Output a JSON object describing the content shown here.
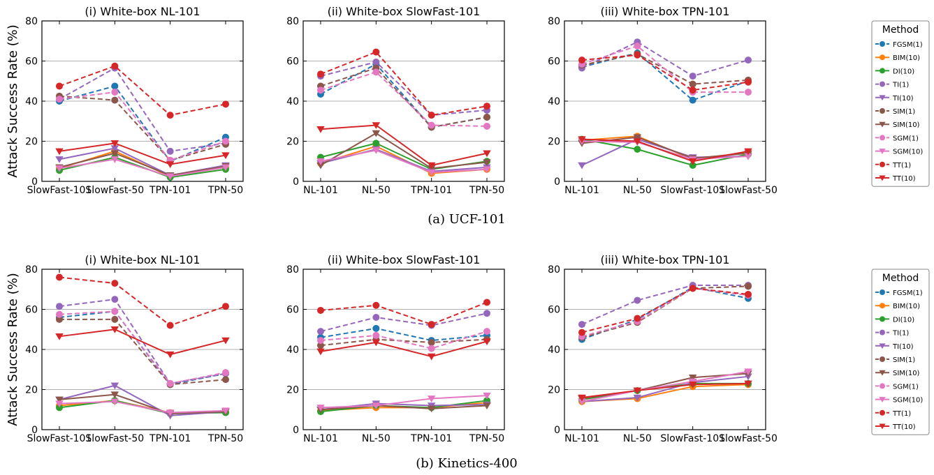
{
  "ylabel": "Attack Success Rate (%)",
  "legend": {
    "title": "Method",
    "entries": [
      {
        "name": "FGSM(1)",
        "color": "#1f77b4",
        "marker": "circle",
        "dash": true
      },
      {
        "name": "BIM(10)",
        "color": "#ff7f0e",
        "marker": "circle",
        "dash": false
      },
      {
        "name": "DI(10)",
        "color": "#2ca02c",
        "marker": "circle",
        "dash": false
      },
      {
        "name": "TI(1)",
        "color": "#9467bd",
        "marker": "circle",
        "dash": true
      },
      {
        "name": "TI(10)",
        "color": "#9467bd",
        "marker": "triangle",
        "dash": false
      },
      {
        "name": "SIM(1)",
        "color": "#8c564b",
        "marker": "circle",
        "dash": true
      },
      {
        "name": "SIM(10)",
        "color": "#8c564b",
        "marker": "triangle",
        "dash": false
      },
      {
        "name": "SGM(1)",
        "color": "#e377c2",
        "marker": "circle",
        "dash": true
      },
      {
        "name": "SGM(10)",
        "color": "#e377c2",
        "marker": "triangle",
        "dash": false
      },
      {
        "name": "TT(1)",
        "color": "#d62728",
        "marker": "circle",
        "dash": true
      },
      {
        "name": "TT(10)",
        "color": "#d62728",
        "marker": "triangle",
        "dash": false
      }
    ]
  },
  "captions": [
    "(a) UCF-101",
    "(b) Kinetics-400"
  ],
  "chart_data": [
    {
      "type": "line",
      "row": 0,
      "col": 0,
      "title": "(i) White-box NL-101",
      "categories": [
        "SlowFast-101",
        "SlowFast-50",
        "TPN-101",
        "TPN-50"
      ],
      "ylim": [
        0,
        80
      ],
      "yticks": [
        0,
        20,
        40,
        60,
        80
      ],
      "grid": true,
      "series": [
        {
          "name": "FGSM(1)",
          "values": [
            40,
            47.5,
            10,
            22
          ]
        },
        {
          "name": "BIM(10)",
          "values": [
            6.5,
            15,
            2.5,
            7
          ]
        },
        {
          "name": "DI(10)",
          "values": [
            5.5,
            12,
            2,
            6
          ]
        },
        {
          "name": "TI(1)",
          "values": [
            41,
            56.5,
            15,
            19
          ]
        },
        {
          "name": "TI(10)",
          "values": [
            11,
            16.5,
            3,
            8
          ]
        },
        {
          "name": "SIM(1)",
          "values": [
            42.5,
            40.5,
            10.5,
            18.5
          ]
        },
        {
          "name": "SIM(10)",
          "values": [
            7,
            14,
            3,
            7.5
          ]
        },
        {
          "name": "SGM(1)",
          "values": [
            41,
            44.5,
            10.5,
            20
          ]
        },
        {
          "name": "SGM(10)",
          "values": [
            6.5,
            11,
            2.5,
            7
          ]
        },
        {
          "name": "TT(1)",
          "values": [
            47.5,
            57.5,
            33,
            38.5
          ]
        },
        {
          "name": "TT(10)",
          "values": [
            15,
            19,
            8.5,
            13
          ]
        }
      ]
    },
    {
      "type": "line",
      "row": 0,
      "col": 1,
      "title": "(ii) White-box SlowFast-101",
      "categories": [
        "NL-101",
        "NL-50",
        "TPN-101",
        "TPN-50"
      ],
      "ylim": [
        0,
        80
      ],
      "yticks": [
        0,
        20,
        40,
        60,
        80
      ],
      "grid": true,
      "series": [
        {
          "name": "FGSM(1)",
          "values": [
            43.5,
            58.5,
            27,
            32
          ]
        },
        {
          "name": "BIM(10)",
          "values": [
            9,
            17.5,
            4,
            6
          ]
        },
        {
          "name": "DI(10)",
          "values": [
            12,
            19,
            6,
            10
          ]
        },
        {
          "name": "TI(1)",
          "values": [
            52.5,
            59.5,
            33,
            35.5
          ]
        },
        {
          "name": "TI(10)",
          "values": [
            9,
            16,
            5,
            7
          ]
        },
        {
          "name": "SIM(1)",
          "values": [
            47.5,
            56.5,
            27,
            32
          ]
        },
        {
          "name": "SIM(10)",
          "values": [
            8,
            24,
            6.5,
            9.5
          ]
        },
        {
          "name": "SGM(1)",
          "values": [
            45.5,
            54.5,
            28,
            27.5
          ]
        },
        {
          "name": "SGM(10)",
          "values": [
            10,
            15.5,
            4.5,
            6
          ]
        },
        {
          "name": "TT(1)",
          "values": [
            53.5,
            64.5,
            33,
            37.5
          ]
        },
        {
          "name": "TT(10)",
          "values": [
            26,
            28,
            8,
            14
          ]
        }
      ]
    },
    {
      "type": "line",
      "row": 0,
      "col": 2,
      "title": "(iii) White-box TPN-101",
      "categories": [
        "NL-101",
        "NL-50",
        "SlowFast-101",
        "SlowFast-50"
      ],
      "ylim": [
        0,
        80
      ],
      "yticks": [
        0,
        20,
        40,
        60,
        80
      ],
      "grid": true,
      "series": [
        {
          "name": "FGSM(1)",
          "values": [
            57,
            64,
            40.5,
            50
          ]
        },
        {
          "name": "BIM(10)",
          "values": [
            20.5,
            22.5,
            11,
            14.5
          ]
        },
        {
          "name": "DI(10)",
          "values": [
            21,
            16,
            8,
            13.5
          ]
        },
        {
          "name": "TI(1)",
          "values": [
            56.5,
            69.5,
            52.5,
            60.5
          ]
        },
        {
          "name": "TI(10)",
          "values": [
            8,
            21,
            12,
            12.5
          ]
        },
        {
          "name": "SIM(1)",
          "values": [
            58,
            63.5,
            48.5,
            50.5
          ]
        },
        {
          "name": "SIM(10)",
          "values": [
            19,
            22,
            11.5,
            14
          ]
        },
        {
          "name": "SGM(1)",
          "values": [
            58.5,
            67.5,
            44.5,
            44.5
          ]
        },
        {
          "name": "SGM(10)",
          "values": [
            20,
            19.5,
            11,
            12.5
          ]
        },
        {
          "name": "TT(1)",
          "values": [
            60.5,
            63,
            45.5,
            49.5
          ]
        },
        {
          "name": "TT(10)",
          "values": [
            21,
            20,
            10,
            15
          ]
        }
      ]
    },
    {
      "type": "line",
      "row": 1,
      "col": 0,
      "title": "(i) White-box NL-101",
      "categories": [
        "SlowFast-101",
        "SlowFast-50",
        "TPN-101",
        "TPN-50"
      ],
      "ylim": [
        0,
        80
      ],
      "yticks": [
        0,
        20,
        40,
        60,
        80
      ],
      "grid": true,
      "series": [
        {
          "name": "FGSM(1)",
          "values": [
            56,
            59,
            22.5,
            28
          ]
        },
        {
          "name": "BIM(10)",
          "values": [
            12,
            14.5,
            8.5,
            9
          ]
        },
        {
          "name": "DI(10)",
          "values": [
            11,
            14.5,
            8,
            8.5
          ]
        },
        {
          "name": "TI(1)",
          "values": [
            61.5,
            65,
            23,
            28
          ]
        },
        {
          "name": "TI(10)",
          "values": [
            15,
            22,
            7,
            9
          ]
        },
        {
          "name": "SIM(1)",
          "values": [
            55,
            55,
            22.5,
            25
          ]
        },
        {
          "name": "SIM(10)",
          "values": [
            15,
            17.5,
            8,
            9
          ]
        },
        {
          "name": "SGM(1)",
          "values": [
            57.5,
            59,
            23,
            28.5
          ]
        },
        {
          "name": "SGM(10)",
          "values": [
            13,
            14,
            8.5,
            9.5
          ]
        },
        {
          "name": "TT(1)",
          "values": [
            76,
            73,
            52,
            61.5
          ]
        },
        {
          "name": "TT(10)",
          "values": [
            46.5,
            50,
            37.5,
            44.5
          ]
        }
      ]
    },
    {
      "type": "line",
      "row": 1,
      "col": 1,
      "title": "(ii) White-box SlowFast-101",
      "categories": [
        "NL-101",
        "NL-50",
        "TPN-101",
        "TPN-50"
      ],
      "ylim": [
        0,
        80
      ],
      "yticks": [
        0,
        20,
        40,
        60,
        80
      ],
      "grid": true,
      "series": [
        {
          "name": "FGSM(1)",
          "values": [
            46,
            50.5,
            44.5,
            47
          ]
        },
        {
          "name": "BIM(10)",
          "values": [
            9.5,
            11,
            11,
            13.5
          ]
        },
        {
          "name": "DI(10)",
          "values": [
            9,
            12,
            11,
            14.5
          ]
        },
        {
          "name": "TI(1)",
          "values": [
            49,
            56,
            52,
            58
          ]
        },
        {
          "name": "TI(10)",
          "values": [
            10,
            13,
            12,
            12.5
          ]
        },
        {
          "name": "SIM(1)",
          "values": [
            42,
            45,
            43.5,
            45
          ]
        },
        {
          "name": "SIM(10)",
          "values": [
            10,
            12,
            10.5,
            12
          ]
        },
        {
          "name": "SGM(1)",
          "values": [
            44.5,
            47,
            40.5,
            49
          ]
        },
        {
          "name": "SGM(10)",
          "values": [
            11,
            12,
            15.5,
            17
          ]
        },
        {
          "name": "TT(1)",
          "values": [
            59.5,
            62,
            52.5,
            63.5
          ]
        },
        {
          "name": "TT(10)",
          "values": [
            39,
            43.5,
            36.5,
            44
          ]
        }
      ]
    },
    {
      "type": "line",
      "row": 1,
      "col": 2,
      "title": "(iii) White-box TPN-101",
      "categories": [
        "NL-101",
        "NL-50",
        "SlowFast-101",
        "SlowFast-50"
      ],
      "ylim": [
        0,
        80
      ],
      "yticks": [
        0,
        20,
        40,
        60,
        80
      ],
      "grid": true,
      "series": [
        {
          "name": "FGSM(1)",
          "values": [
            45,
            55,
            71,
            65.5
          ]
        },
        {
          "name": "BIM(10)",
          "values": [
            14,
            15.5,
            21.5,
            22.5
          ]
        },
        {
          "name": "DI(10)",
          "values": [
            15,
            19.5,
            23,
            23
          ]
        },
        {
          "name": "TI(1)",
          "values": [
            52.5,
            64.5,
            72,
            72
          ]
        },
        {
          "name": "TI(10)",
          "values": [
            14,
            16,
            23.5,
            26.5
          ]
        },
        {
          "name": "SIM(1)",
          "values": [
            46,
            53.5,
            70.5,
            71.5
          ]
        },
        {
          "name": "SIM(10)",
          "values": [
            15.5,
            19.5,
            26,
            28
          ]
        },
        {
          "name": "SGM(1)",
          "values": [
            46.5,
            54,
            70.5,
            67
          ]
        },
        {
          "name": "SGM(10)",
          "values": [
            14,
            19.5,
            24,
            29
          ]
        },
        {
          "name": "TT(1)",
          "values": [
            48.5,
            55.5,
            70.5,
            67.5
          ]
        },
        {
          "name": "TT(10)",
          "values": [
            16,
            19.5,
            22.5,
            23
          ]
        }
      ]
    }
  ]
}
